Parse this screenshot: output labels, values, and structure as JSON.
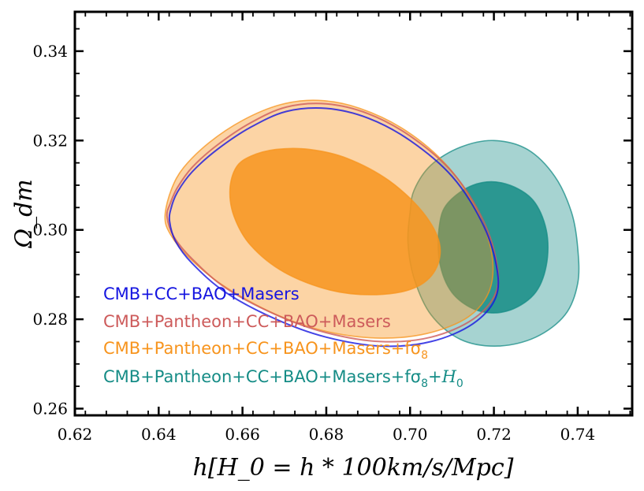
{
  "chart_data": {
    "type": "contour",
    "xlabel": "h[H_0 = h * 100km/s/Mpc]",
    "ylabel": "Ω_dm",
    "xlim": [
      0.62,
      0.753
    ],
    "ylim": [
      0.2585,
      0.3488
    ],
    "xticks": [
      0.62,
      0.64,
      0.66,
      0.68,
      0.7,
      0.72,
      0.74
    ],
    "xtick_labels": [
      "0.62",
      "0.64",
      "0.66",
      "0.68",
      "0.70",
      "0.72",
      "0.74"
    ],
    "yticks": [
      0.26,
      0.28,
      0.3,
      0.32,
      0.34
    ],
    "ytick_labels": [
      "0.26",
      "0.28",
      "0.30",
      "0.32",
      "0.34"
    ],
    "legend_position": "lower-left",
    "series": [
      {
        "name": "CMB+CC+BAO+Masers",
        "legend_label": "CMB+CC+BAO+Masers",
        "color": "#1515e0",
        "style": "outline",
        "contours": [
          [
            [
              0.6426,
              0.302
            ],
            [
              0.643,
              0.305
            ],
            [
              0.6445,
              0.3085
            ],
            [
              0.648,
              0.313
            ],
            [
              0.654,
              0.318
            ],
            [
              0.662,
              0.323
            ],
            [
              0.6705,
              0.3265
            ],
            [
              0.68,
              0.3272
            ],
            [
              0.69,
              0.325
            ],
            [
              0.7,
              0.32
            ],
            [
              0.71,
              0.312
            ],
            [
              0.717,
              0.302
            ],
            [
              0.7205,
              0.2925
            ],
            [
              0.7205,
              0.285
            ],
            [
              0.715,
              0.279
            ],
            [
              0.705,
              0.275
            ],
            [
              0.693,
              0.274
            ],
            [
              0.68,
              0.276
            ],
            [
              0.668,
              0.28
            ],
            [
              0.656,
              0.286
            ],
            [
              0.648,
              0.2925
            ],
            [
              0.644,
              0.2975
            ]
          ]
        ]
      },
      {
        "name": "CMB+Pantheon+CC+BAO+Masers",
        "legend_label": "CMB+Pantheon+CC+BAO+Masers",
        "color": "#cd5b5b",
        "style": "outline",
        "contours": [
          [
            [
              0.642,
              0.303
            ],
            [
              0.6428,
              0.306
            ],
            [
              0.6445,
              0.3095
            ],
            [
              0.648,
              0.314
            ],
            [
              0.654,
              0.319
            ],
            [
              0.662,
              0.324
            ],
            [
              0.6705,
              0.3275
            ],
            [
              0.68,
              0.3282
            ],
            [
              0.69,
              0.326
            ],
            [
              0.7,
              0.321
            ],
            [
              0.71,
              0.313
            ],
            [
              0.717,
              0.303
            ],
            [
              0.7205,
              0.2935
            ],
            [
              0.7205,
              0.286
            ],
            [
              0.715,
              0.28
            ],
            [
              0.705,
              0.276
            ],
            [
              0.693,
              0.275
            ],
            [
              0.68,
              0.277
            ],
            [
              0.668,
              0.281
            ],
            [
              0.656,
              0.287
            ],
            [
              0.648,
              0.2935
            ],
            [
              0.6436,
              0.2985
            ]
          ]
        ]
      },
      {
        "name": "CMB+Pantheon+CC+BAO+Masers+fσ8",
        "legend_label": "CMB+Pantheon+CC+BAO+Masers+fσ",
        "legend_subscript": "8",
        "color": "#f7941d",
        "style": "filled",
        "contours": [
          [
            [
              0.6415,
              0.303
            ],
            [
              0.643,
              0.309
            ],
            [
              0.646,
              0.314
            ],
            [
              0.652,
              0.3195
            ],
            [
              0.66,
              0.3245
            ],
            [
              0.669,
              0.328
            ],
            [
              0.678,
              0.329
            ],
            [
              0.688,
              0.3272
            ],
            [
              0.699,
              0.3222
            ],
            [
              0.709,
              0.3142
            ],
            [
              0.716,
              0.3042
            ],
            [
              0.7195,
              0.2946
            ],
            [
              0.719,
              0.2866
            ],
            [
              0.714,
              0.2806
            ],
            [
              0.704,
              0.2768
            ],
            [
              0.692,
              0.2758
            ],
            [
              0.679,
              0.2775
            ],
            [
              0.667,
              0.2815
            ],
            [
              0.655,
              0.2878
            ],
            [
              0.647,
              0.294
            ],
            [
              0.6428,
              0.299
            ]
          ],
          [
            [
              0.6585,
              0.314
            ],
            [
              0.662,
              0.3165
            ],
            [
              0.668,
              0.318
            ],
            [
              0.676,
              0.318
            ],
            [
              0.685,
              0.316
            ],
            [
              0.695,
              0.311
            ],
            [
              0.703,
              0.304
            ],
            [
              0.707,
              0.297
            ],
            [
              0.706,
              0.291
            ],
            [
              0.701,
              0.287
            ],
            [
              0.692,
              0.2855
            ],
            [
              0.681,
              0.2865
            ],
            [
              0.67,
              0.2905
            ],
            [
              0.662,
              0.2965
            ],
            [
              0.658,
              0.303
            ],
            [
              0.657,
              0.309
            ]
          ]
        ]
      },
      {
        "name": "CMB+Pantheon+CC+BAO+Masers+fσ8+H0",
        "legend_label": "CMB+Pantheon+CC+BAO+Masers+fσ",
        "legend_subscript": "8",
        "legend_suffix": "+H",
        "legend_suffix_subscript": "0",
        "color": "#158c86",
        "style": "filled",
        "contours": [
          [
            [
              0.7,
              0.304
            ],
            [
              0.701,
              0.309
            ],
            [
              0.705,
              0.3145
            ],
            [
              0.712,
              0.3185
            ],
            [
              0.72,
              0.32
            ],
            [
              0.728,
              0.318
            ],
            [
              0.7345,
              0.312
            ],
            [
              0.7385,
              0.304
            ],
            [
              0.74,
              0.296
            ],
            [
              0.74,
              0.288
            ],
            [
              0.737,
              0.281
            ],
            [
              0.73,
              0.276
            ],
            [
              0.721,
              0.274
            ],
            [
              0.712,
              0.2755
            ],
            [
              0.705,
              0.281
            ],
            [
              0.701,
              0.289
            ],
            [
              0.6995,
              0.297
            ]
          ],
          [
            [
              0.707,
              0.301
            ],
            [
              0.709,
              0.306
            ],
            [
              0.715,
              0.31
            ],
            [
              0.722,
              0.3105
            ],
            [
              0.729,
              0.307
            ],
            [
              0.7325,
              0.3
            ],
            [
              0.7325,
              0.292
            ],
            [
              0.7295,
              0.2855
            ],
            [
              0.723,
              0.2818
            ],
            [
              0.716,
              0.282
            ],
            [
              0.71,
              0.286
            ],
            [
              0.707,
              0.293
            ]
          ]
        ]
      }
    ]
  }
}
